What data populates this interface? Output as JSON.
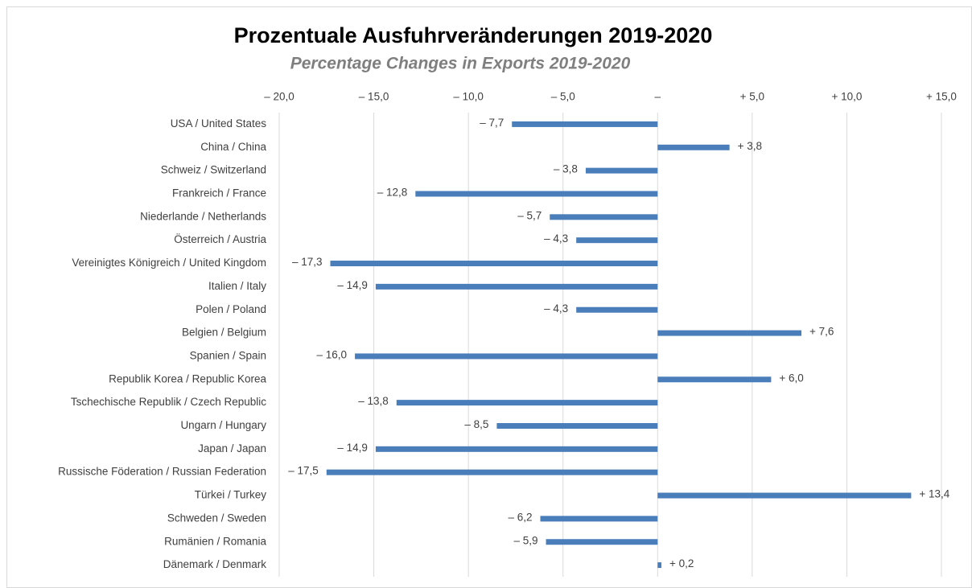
{
  "chart_data": {
    "type": "barh",
    "title": "Prozentuale Ausfuhrveränderungen 2019-2020",
    "subtitle": "Percentage Changes in Exports 2019-2020",
    "categories": [
      "USA / United States",
      "China / China",
      "Schweiz / Switzerland",
      "Frankreich / France",
      "Niederlande / Netherlands",
      "Österreich / Austria",
      "Vereinigtes Königreich / United Kingdom",
      "Italien / Italy",
      "Polen / Poland",
      "Belgien / Belgium",
      "Spanien / Spain",
      "Republik Korea / Republic Korea",
      "Tschechische Republik / Czech Republic",
      "Ungarn / Hungary",
      "Japan / Japan",
      "Russische Föderation / Russian Federation",
      "Türkei / Turkey",
      "Schweden / Sweden",
      "Rumänien / Romania",
      "Dänemark / Denmark"
    ],
    "values": [
      -7.7,
      3.8,
      -3.8,
      -12.8,
      -5.7,
      -4.3,
      -17.3,
      -14.9,
      -4.3,
      7.6,
      -16.0,
      6.0,
      -13.8,
      -8.5,
      -14.9,
      -17.5,
      13.4,
      -6.2,
      -5.9,
      0.2
    ],
    "value_labels": [
      "– 7,7",
      "+ 3,8",
      "– 3,8",
      "– 12,8",
      "– 5,7",
      "– 4,3",
      "– 17,3",
      "– 14,9",
      "– 4,3",
      "+ 7,6",
      "– 16,0",
      "+ 6,0",
      "– 13,8",
      "– 8,5",
      "– 14,9",
      "– 17,5",
      "+ 13,4",
      "– 6,2",
      "– 5,9",
      "+ 0,2"
    ],
    "color": "#4a7ebb",
    "xlim": [
      -20,
      15
    ],
    "xticks": [
      {
        "value": -20,
        "label": "– 20,0"
      },
      {
        "value": -15,
        "label": "– 15,0"
      },
      {
        "value": -10,
        "label": "– 10,0"
      },
      {
        "value": -5,
        "label": "– 5,0"
      },
      {
        "value": 0,
        "label": "–"
      },
      {
        "value": 5,
        "label": "+ 5,0"
      },
      {
        "value": 10,
        "label": "+ 10,0"
      },
      {
        "value": 15,
        "label": "+ 15,0"
      }
    ],
    "grid": true
  }
}
